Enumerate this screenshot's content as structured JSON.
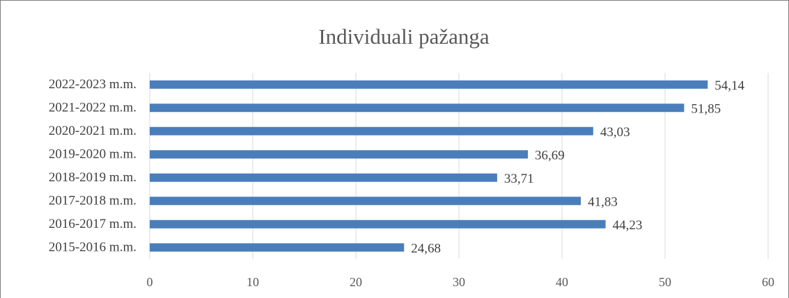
{
  "chart_data": {
    "type": "bar",
    "orientation": "horizontal",
    "title": "Individuali pažanga",
    "categories": [
      "2015-2016 m.m.",
      "2016-2017 m.m.",
      "2017-2018 m.m.",
      "2018-2019 m.m.",
      "2019-2020 m.m.",
      "2020-2021 m.m.",
      "2021-2022 m.m.",
      "2022-2023 m.m."
    ],
    "values": [
      24.68,
      44.23,
      41.83,
      33.71,
      36.69,
      43.03,
      51.85,
      54.14
    ],
    "value_labels": [
      "24,68",
      "44,23",
      "41,83",
      "33,71",
      "36,69",
      "43,03",
      "51,85",
      "54,14"
    ],
    "color": "#4a7ebb",
    "xlim": [
      0,
      60
    ],
    "xticks": [
      0,
      10,
      20,
      30,
      40,
      50,
      60
    ],
    "grid": true
  }
}
